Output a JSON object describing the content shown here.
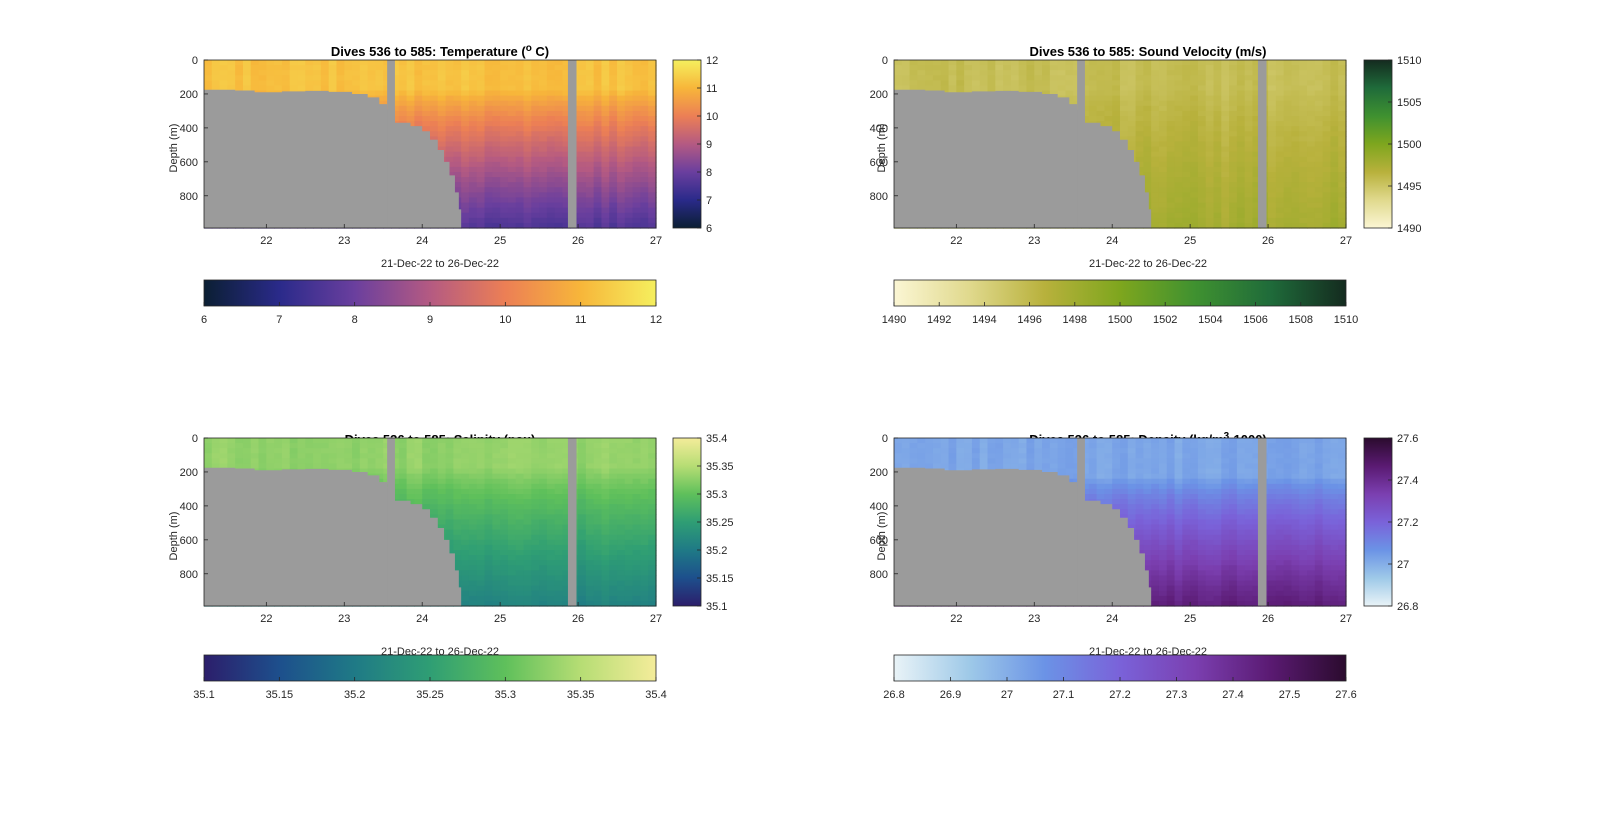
{
  "colors": {
    "mask": "#9b9b9b",
    "axis": "#262626"
  },
  "chart_data": [
    {
      "type": "heatmap",
      "variable": "temperature",
      "title_parts": {
        "pre": "Dives 536 to 585: Temperature (",
        "sup": "o",
        "post": " C)"
      },
      "xlabel": "21-Dec-22 to 26-Dec-22",
      "ylabel": "Depth (m)",
      "xlim": [
        21.2,
        27.0
      ],
      "ylim": [
        0,
        990
      ],
      "y_reversed": true,
      "xticks": [
        22,
        23,
        24,
        25,
        26,
        27
      ],
      "yticks": [
        0,
        200,
        400,
        600,
        800
      ],
      "clim": [
        6,
        12
      ],
      "colormap": [
        "#0b1f33",
        "#2a2a8a",
        "#6a3f9e",
        "#b45a82",
        "#ec7f55",
        "#f7b63a",
        "#f5ef5e"
      ],
      "colorbar_ticks": [
        6,
        7,
        8,
        9,
        10,
        11,
        12
      ],
      "hcolorbar_ticks": [
        6,
        7,
        8,
        9,
        10,
        11,
        12
      ],
      "profile": {
        "surface": 11.2,
        "bottom": 7.6,
        "mixed_layer_depth": 180
      },
      "gaps": [
        [
          23.55,
          23.65
        ],
        [
          25.87,
          25.98
        ]
      ]
    },
    {
      "type": "heatmap",
      "variable": "sound_velocity",
      "title_parts": {
        "pre": "Dives 536 to 585: Sound Velocity (m/s)",
        "sup": "",
        "post": ""
      },
      "xlabel": "21-Dec-22 to 26-Dec-22",
      "ylabel": "Depth (m)",
      "xlim": [
        21.2,
        27.0
      ],
      "ylim": [
        0,
        990
      ],
      "y_reversed": true,
      "xticks": [
        22,
        23,
        24,
        25,
        26,
        27
      ],
      "yticks": [
        0,
        200,
        400,
        600,
        800
      ],
      "clim": [
        1490,
        1510
      ],
      "colormap": [
        "#fbf6d4",
        "#e0d98d",
        "#b8b13c",
        "#7ea61e",
        "#3f9130",
        "#1f6b3a",
        "#142b1f"
      ],
      "colorbar_ticks": [
        1490,
        1495,
        1500,
        1505,
        1510
      ],
      "hcolorbar_ticks": [
        1490,
        1492,
        1494,
        1496,
        1498,
        1500,
        1502,
        1504,
        1506,
        1508,
        1510
      ],
      "profile": {
        "surface": 1495.6,
        "bottom": 1497.8,
        "mixed_layer_depth": 180
      },
      "gaps": [
        [
          23.55,
          23.65
        ],
        [
          25.87,
          25.98
        ]
      ]
    },
    {
      "type": "heatmap",
      "variable": "salinity",
      "title_parts": {
        "pre": "Dives 536 to 585: Salinity (psu)",
        "sup": "",
        "post": ""
      },
      "xlabel": "21-Dec-22 to 26-Dec-22",
      "ylabel": "Depth (m)",
      "xlim": [
        21.2,
        27.0
      ],
      "ylim": [
        0,
        990
      ],
      "y_reversed": true,
      "xticks": [
        22,
        23,
        24,
        25,
        26,
        27
      ],
      "yticks": [
        0,
        200,
        400,
        600,
        800
      ],
      "clim": [
        35.1,
        35.4
      ],
      "colormap": [
        "#2c1e6b",
        "#1d4f8c",
        "#1f7a86",
        "#2f9e74",
        "#5fc05b",
        "#b6dd74",
        "#f4ec9a"
      ],
      "colorbar_ticks": [
        35.1,
        35.15,
        35.2,
        35.25,
        35.3,
        35.35,
        35.4
      ],
      "hcolorbar_ticks": [
        35.1,
        35.15,
        35.2,
        35.25,
        35.3,
        35.35,
        35.4
      ],
      "profile": {
        "surface": 35.33,
        "bottom": 35.21,
        "mixed_layer_depth": 180
      },
      "gaps": [
        [
          23.55,
          23.65
        ],
        [
          25.87,
          25.98
        ]
      ]
    },
    {
      "type": "heatmap",
      "variable": "density",
      "title_parts": {
        "pre": "Dives 536 to 585: Density (kg/m",
        "sup": "3",
        "post": "-1000)"
      },
      "xlabel": "21-Dec-22 to 26-Dec-22",
      "ylabel": "Depth (m)",
      "xlim": [
        21.2,
        27.0
      ],
      "ylim": [
        0,
        990
      ],
      "y_reversed": true,
      "xticks": [
        22,
        23,
        24,
        25,
        26,
        27
      ],
      "yticks": [
        0,
        200,
        400,
        600,
        800
      ],
      "clim": [
        26.8,
        27.6
      ],
      "colormap": [
        "#e9f3f7",
        "#9ec9e8",
        "#6b93e6",
        "#7a62d9",
        "#7b3fb0",
        "#5a1a72",
        "#2b0b2e"
      ],
      "colorbar_ticks": [
        26.8,
        27,
        27.2,
        27.4,
        27.6
      ],
      "hcolorbar_ticks": [
        26.8,
        26.9,
        27,
        27.1,
        27.2,
        27.3,
        27.4,
        27.5,
        27.6
      ],
      "profile": {
        "surface": 27.02,
        "bottom": 27.45,
        "mixed_layer_depth": 230
      },
      "gaps": [
        [
          23.55,
          23.65
        ],
        [
          25.87,
          25.98
        ]
      ]
    }
  ],
  "bathymetry": [
    [
      21.2,
      175
    ],
    [
      21.6,
      180
    ],
    [
      21.85,
      190
    ],
    [
      22.2,
      185
    ],
    [
      22.5,
      182
    ],
    [
      22.8,
      188
    ],
    [
      23.1,
      200
    ],
    [
      23.3,
      220
    ],
    [
      23.45,
      260
    ],
    [
      23.55,
      290
    ],
    [
      23.65,
      370
    ],
    [
      23.85,
      390
    ],
    [
      24.0,
      420
    ],
    [
      24.1,
      470
    ],
    [
      24.2,
      530
    ],
    [
      24.28,
      600
    ],
    [
      24.35,
      680
    ],
    [
      24.42,
      780
    ],
    [
      24.47,
      880
    ],
    [
      24.5,
      990
    ]
  ]
}
